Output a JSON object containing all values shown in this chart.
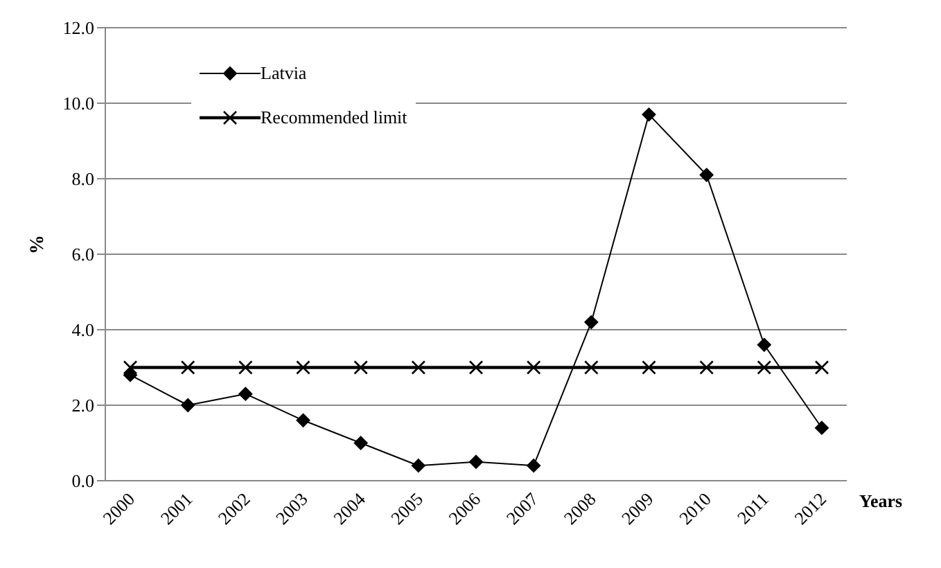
{
  "chart_data": {
    "type": "line",
    "xlabel": "Years",
    "ylabel": "%",
    "categories": [
      "2000",
      "2001",
      "2002",
      "2003",
      "2004",
      "2005",
      "2006",
      "2007",
      "2008",
      "2009",
      "2010",
      "2011",
      "2012"
    ],
    "series": [
      {
        "name": "Latvia",
        "color": "#000000",
        "marker": "diamond",
        "values": [
          2.8,
          2.0,
          2.3,
          1.6,
          1.0,
          0.4,
          0.5,
          0.4,
          4.2,
          9.7,
          8.1,
          3.6,
          1.4
        ]
      },
      {
        "name": "Recommended  limit",
        "color": "#000000",
        "marker": "cross",
        "values": [
          3.0,
          3.0,
          3.0,
          3.0,
          3.0,
          3.0,
          3.0,
          3.0,
          3.0,
          3.0,
          3.0,
          3.0,
          3.0
        ]
      }
    ],
    "ylim": [
      0,
      12
    ],
    "yticks": [
      {
        "value": 0,
        "label": "0.0"
      },
      {
        "value": 2,
        "label": "2.0"
      },
      {
        "value": 4,
        "label": "4.0"
      },
      {
        "value": 6,
        "label": "6.0"
      },
      {
        "value": 8,
        "label": "8.0"
      },
      {
        "value": 10,
        "label": "10.0"
      },
      {
        "value": 12,
        "label": "12.0"
      }
    ],
    "grid": "y",
    "legend": "top left",
    "line_style": "solid"
  }
}
